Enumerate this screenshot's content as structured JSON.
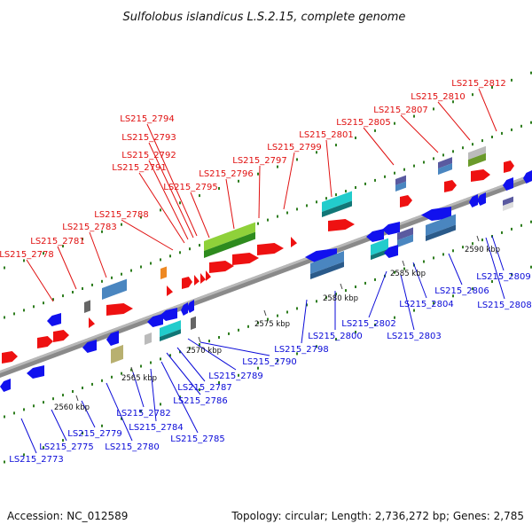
{
  "title": "Sulfolobus islandicus L.S.2.15, complete genome",
  "accession": "Accession: NC_012589",
  "summary": "Topology: circular; Length: 2,736,272 bp; Genes: 2,785",
  "colors": {
    "backbone": "#808080",
    "forward_label": "#e01010",
    "reverse_label": "#0a0ad8",
    "tick": "#2e7d1e"
  },
  "ticks": [
    "2560 kbp",
    "2565 kbp",
    "2570 kbp",
    "2575 kbp",
    "2580 kbp",
    "2585 kbp",
    "2590 kbp"
  ],
  "labels_forward": [
    "LS215_2778",
    "LS215_2781",
    "LS215_2783",
    "LS215_2788",
    "LS215_2791",
    "LS215_2792",
    "LS215_2793",
    "LS215_2794",
    "LS215_2795",
    "LS215_2796",
    "LS215_2797",
    "LS215_2799",
    "LS215_2801",
    "LS215_2805",
    "LS215_2807",
    "LS215_2810",
    "LS215_2812"
  ],
  "labels_reverse": [
    "LS215_2773",
    "LS215_2775",
    "LS215_2779",
    "LS215_2780",
    "LS215_2782",
    "LS215_2784",
    "LS215_2785",
    "LS215_2786",
    "LS215_2787",
    "LS215_2789",
    "LS215_2790",
    "LS215_2798",
    "LS215_2800",
    "LS215_2802",
    "LS215_2803",
    "LS215_2804",
    "LS215_2806",
    "LS215_2808",
    "LS215_2809"
  ]
}
